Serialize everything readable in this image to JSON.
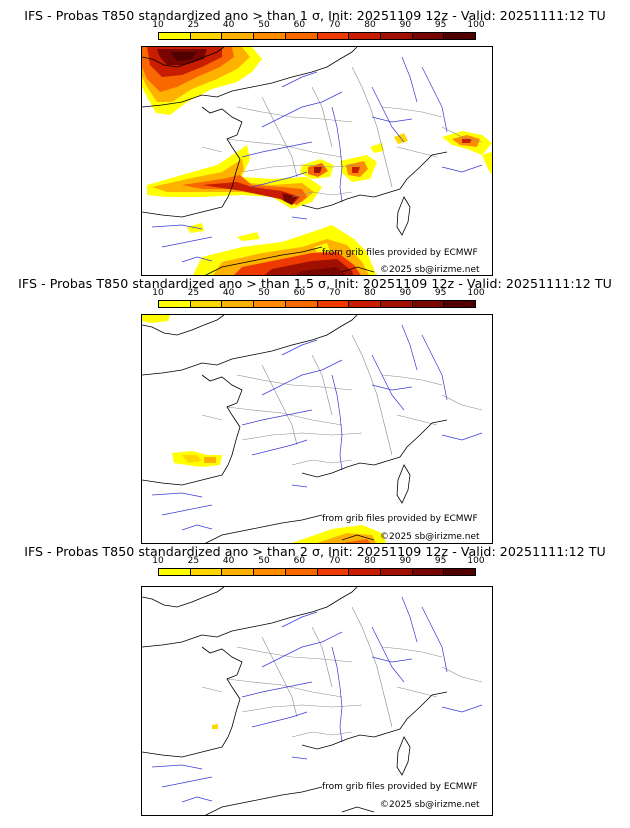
{
  "colors": {
    "scale": [
      "#ffff00",
      "#ffd700",
      "#ffb100",
      "#ff8c00",
      "#f96800",
      "#ee3a00",
      "#c81d00",
      "#a01000",
      "#780500",
      "#500000"
    ],
    "rivers": "#3a3ad8",
    "borders": "#8c8c8c",
    "coast": "#000000"
  },
  "scale": {
    "ticks": [
      "10",
      "25",
      "40",
      "50",
      "60",
      "70",
      "80",
      "90",
      "95",
      "100"
    ]
  },
  "panels": [
    {
      "title": "IFS - Probas T850  standardized ano > than 1 σ, Init: 20251109 12z - Valid: 20251111:12 TU",
      "credit_source": "from grib files provided by ECMWF",
      "credit_copyright": "©2025 sb@irizme.net"
    },
    {
      "title": "IFS - Probas T850  standardized ano > than 1.5 σ, Init: 20251109 12z - Valid: 20251111:12 TU",
      "credit_source": "from grib files provided by ECMWF",
      "credit_copyright": "©2025 sb@irizme.net"
    },
    {
      "title": "IFS - Probas T850  standardized ano > than 2 σ, Init: 20251109 12z - Valid: 20251111:12 TU",
      "credit_source": "from grib files provided by ECMWF",
      "credit_copyright": "©2025 sb@irizme.net"
    }
  ]
}
